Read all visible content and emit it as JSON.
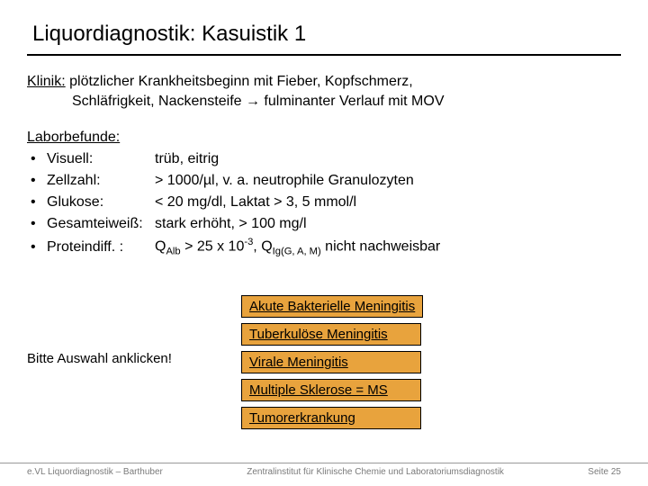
{
  "title": "Liquordiagnostik: Kasuistik 1",
  "klinik": {
    "label": "Klinik:",
    "line1": " plötzlicher Krankheitsbeginn mit Fieber, Kopfschmerz,",
    "line2": "Schläfrigkeit, Nackensteife → fulminanter Verlauf mit MOV"
  },
  "labor": {
    "label": "Laborbefunde:",
    "items": [
      {
        "name": "Visuell:",
        "val": "trüb, eitrig"
      },
      {
        "name": "Zellzahl:",
        "val": "> 1000/µl,  v. a. neutrophile Granulozyten"
      },
      {
        "name": "Glukose:",
        "val": "< 20 mg/dl, Laktat > 3, 5 mmol/l"
      },
      {
        "name": "Gesamteiweiß:",
        "val": "stark erhöht, > 100 mg/l"
      }
    ],
    "protein": {
      "name": "Proteindiff. :",
      "q1_pre": "Q",
      "q1_sub": "Alb",
      "q1_post": " > 25 x 10",
      "q1_sup": "-3",
      "q2_pre": ", Q",
      "q2_sub": "Ig(G, A, M)",
      "q2_post": " nicht nachweisbar"
    }
  },
  "prompt": "Bitte Auswahl anklicken!",
  "choices": [
    "Akute Bakterielle Meningitis",
    "Tuberkulöse Meningitis",
    "Virale Meningitis",
    "Multiple Sklerose = MS",
    "Tumorerkrankung"
  ],
  "footer": {
    "left": "e.VL Liquordiagnostik – Barthuber",
    "center": "Zentralinstitut für Klinische Chemie und Laboratoriumsdiagnostik",
    "right": "Seite 25"
  },
  "colors": {
    "button_bg": "#e8a33d",
    "footer_text": "#7a7a7a"
  }
}
